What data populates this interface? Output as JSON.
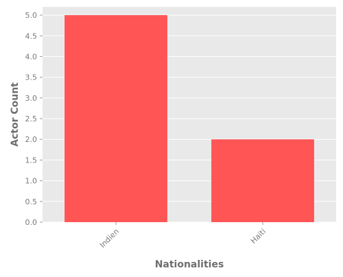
{
  "colors": {
    "bar": "#ff5555",
    "plot_background": "#e9e9e9",
    "grid": "#ffffff",
    "text": "#7a7a7a"
  },
  "chart_data": {
    "type": "bar",
    "categories": [
      "Indien",
      "Haiti"
    ],
    "values": [
      5,
      2
    ],
    "xlabel": "Nationalities",
    "ylabel": "Actor Count",
    "ylim": [
      0,
      5.2
    ],
    "yticks": [
      "0.0",
      "0.5",
      "1.0",
      "1.5",
      "2.0",
      "2.5",
      "3.0",
      "3.5",
      "4.0",
      "4.5",
      "5.0"
    ],
    "grid": true,
    "legend": "none"
  }
}
